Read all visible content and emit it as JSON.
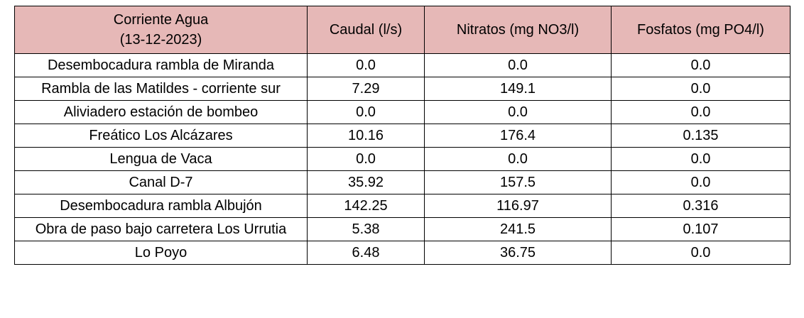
{
  "table": {
    "header": [
      "Corriente Agua (13-12-2023)",
      "Caudal (l/s)",
      "Nitratos (mg NO3/l)",
      "Fosfatos (mg PO4/l)"
    ],
    "rows": [
      [
        "Desembocadura rambla de Miranda",
        "0.0",
        "0.0",
        "0.0"
      ],
      [
        "Rambla de las Matildes - corriente sur",
        "7.29",
        "149.1",
        "0.0"
      ],
      [
        "Aliviadero estación de bombeo",
        "0.0",
        "0.0",
        "0.0"
      ],
      [
        "Freático Los Alcázares",
        "10.16",
        "176.4",
        "0.135"
      ],
      [
        "Lengua de Vaca",
        "0.0",
        "0.0",
        "0.0"
      ],
      [
        "Canal D-7",
        "35.92",
        "157.5",
        "0.0"
      ],
      [
        "Desembocadura rambla Albujón",
        "142.25",
        "116.97",
        "0.316"
      ],
      [
        "Obra de paso bajo carretera Los Urrutia",
        "5.38",
        "241.5",
        "0.107"
      ],
      [
        "Lo Poyo",
        "6.48",
        "36.75",
        "0.0"
      ]
    ]
  }
}
